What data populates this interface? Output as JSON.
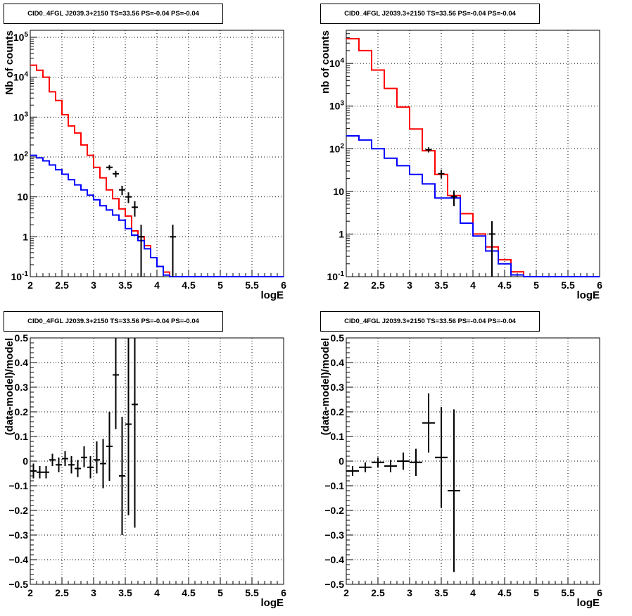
{
  "chart_data": [
    {
      "type": "histogram",
      "title": "CID0_4FGL J2039.3+2150 TS=33.56 PS=-0.04 PS=-0.04",
      "xlabel": "logE",
      "ylabel": "Nb of counts",
      "xlim": [
        2,
        6
      ],
      "ylim": [
        0.1,
        150000
      ],
      "yscale": "log",
      "grid": true,
      "x_ticks": [
        "2",
        "2.5",
        "3",
        "3.5",
        "4",
        "4.5",
        "5",
        "5.5",
        "6"
      ],
      "y_ticks": [
        "10^{-1}",
        "1",
        "10",
        "10^{2}",
        "10^{3}",
        "10^{4}",
        "10^{5}"
      ],
      "bin_edges": [
        2.0,
        2.1,
        2.2,
        2.3,
        2.4,
        2.5,
        2.6,
        2.7,
        2.8,
        2.9,
        3.0,
        3.1,
        3.2,
        3.3,
        3.4,
        3.5,
        3.6,
        3.7,
        3.8,
        3.9,
        4.0,
        4.1,
        4.2,
        4.3,
        4.4,
        4.5,
        4.6,
        4.7,
        4.8,
        4.9,
        5.0,
        5.1,
        5.2,
        5.3,
        5.4,
        5.5,
        5.6,
        5.7,
        5.8,
        5.9,
        6.0
      ],
      "series": [
        {
          "color": "#ff0000",
          "values": [
            20000,
            15000,
            10000,
            4300,
            2600,
            1150,
            600,
            400,
            200,
            110,
            55,
            30,
            15,
            9,
            5,
            3.3,
            1.4,
            1,
            0.6,
            0.3,
            0.18,
            0.13,
            0.1,
            0.1,
            0.1,
            0.1,
            0.1,
            0.1,
            0.1,
            0.1,
            0.1,
            0.1,
            0.1,
            0.1,
            0.1,
            0.1,
            0.1,
            0.1,
            0.1,
            0.1
          ]
        },
        {
          "color": "#0000ff",
          "values": [
            110,
            95,
            80,
            63,
            48,
            37,
            27,
            20,
            15,
            11,
            8.5,
            6,
            4.7,
            3.5,
            2.6,
            1.6,
            1.1,
            0.8,
            0.5,
            0.3,
            0.18,
            0.11,
            0.1,
            0.1,
            0.1,
            0.1,
            0.1,
            0.1,
            0.1,
            0.1,
            0.1,
            0.1,
            0.1,
            0.1,
            0.1,
            0.1,
            0.1,
            0.1,
            0.1,
            0.1
          ]
        }
      ],
      "points": [
        {
          "x": 3.25,
          "y": 55,
          "ylo": 47,
          "yhi": 63
        },
        {
          "x": 3.35,
          "y": 38,
          "ylo": 31,
          "yhi": 45
        },
        {
          "x": 3.45,
          "y": 15,
          "ylo": 11,
          "yhi": 19
        },
        {
          "x": 3.55,
          "y": 10,
          "ylo": 7,
          "yhi": 13
        },
        {
          "x": 3.65,
          "y": 5.5,
          "ylo": 3.2,
          "yhi": 7.8
        },
        {
          "x": 3.75,
          "y": 1,
          "ylo": 0.1,
          "yhi": 2
        },
        {
          "x": 4.25,
          "y": 1,
          "ylo": 0.1,
          "yhi": 2
        }
      ]
    },
    {
      "type": "histogram",
      "title": "CID0_4FGL J2039.3+2150 TS=33.56 PS=-0.04 PS=-0.04",
      "xlabel": "logE",
      "ylabel": "nb of counts",
      "xlim": [
        2,
        6
      ],
      "ylim": [
        0.1,
        60000
      ],
      "yscale": "log",
      "grid": true,
      "x_ticks": [
        "2",
        "2.5",
        "3",
        "3.5",
        "4",
        "4.5",
        "5",
        "5.5",
        "6"
      ],
      "y_ticks": [
        "10^{-1}",
        "1",
        "10",
        "10^{2}",
        "10^{3}",
        "10^{4}"
      ],
      "bin_edges": [
        2.0,
        2.2,
        2.4,
        2.6,
        2.8,
        3.0,
        3.2,
        3.4,
        3.6,
        3.8,
        4.0,
        4.2,
        4.4,
        4.6,
        4.8,
        5.0,
        5.2,
        5.4,
        5.6,
        5.8,
        6.0
      ],
      "series": [
        {
          "color": "#ff0000",
          "values": [
            38000,
            20000,
            7000,
            2600,
            950,
            290,
            90,
            25,
            8,
            3,
            1,
            0.5,
            0.25,
            0.13,
            0.1,
            0.1,
            0.1,
            0.1,
            0.1,
            0.1
          ]
        },
        {
          "color": "#0000ff",
          "values": [
            200,
            160,
            100,
            60,
            40,
            25,
            15,
            7,
            7,
            1.8,
            0.9,
            0.4,
            0.2,
            0.11,
            0.1,
            0.1,
            0.1,
            0.1,
            0.1,
            0.1
          ]
        }
      ],
      "points": [
        {
          "x": 3.3,
          "y": 95,
          "ylo": 82,
          "yhi": 108
        },
        {
          "x": 3.5,
          "y": 26,
          "ylo": 20,
          "yhi": 32
        },
        {
          "x": 3.7,
          "y": 7.5,
          "ylo": 4.5,
          "yhi": 10.5
        },
        {
          "x": 4.3,
          "y": 1,
          "ylo": 0.1,
          "yhi": 2
        }
      ]
    },
    {
      "type": "scatter",
      "title": "CID0_4FGL J2039.3+2150 TS=33.56 PS=-0.04 PS=-0.04",
      "xlabel": "logE",
      "ylabel": "(data-model)/model",
      "xlim": [
        2,
        6
      ],
      "ylim": [
        -0.5,
        0.5
      ],
      "grid": true,
      "x_ticks": [
        "2",
        "2.5",
        "3",
        "3.5",
        "4",
        "4.5",
        "5",
        "5.5",
        "6"
      ],
      "y_ticks": [
        "−0.5",
        "−0.4",
        "−0.3",
        "−0.2",
        "−0.1",
        "0",
        "0.1",
        "0.2",
        "0.3",
        "0.4",
        "0.5"
      ],
      "xerr": 0.05,
      "points": [
        {
          "x": 2.05,
          "y": -0.04,
          "ylo": -0.07,
          "yhi": -0.01
        },
        {
          "x": 2.15,
          "y": -0.045,
          "ylo": -0.07,
          "yhi": -0.02
        },
        {
          "x": 2.25,
          "y": -0.045,
          "ylo": -0.07,
          "yhi": -0.02
        },
        {
          "x": 2.35,
          "y": 0.005,
          "ylo": -0.02,
          "yhi": 0.03
        },
        {
          "x": 2.45,
          "y": -0.015,
          "ylo": -0.045,
          "yhi": 0.015
        },
        {
          "x": 2.55,
          "y": 0.01,
          "ylo": -0.02,
          "yhi": 0.04
        },
        {
          "x": 2.65,
          "y": -0.015,
          "ylo": -0.05,
          "yhi": 0.02
        },
        {
          "x": 2.75,
          "y": -0.03,
          "ylo": -0.065,
          "yhi": 0.005
        },
        {
          "x": 2.85,
          "y": 0.015,
          "ylo": -0.025,
          "yhi": 0.06
        },
        {
          "x": 2.95,
          "y": -0.025,
          "ylo": -0.07,
          "yhi": 0.02
        },
        {
          "x": 3.05,
          "y": 0.005,
          "ylo": -0.05,
          "yhi": 0.08
        },
        {
          "x": 3.15,
          "y": -0.01,
          "ylo": -0.11,
          "yhi": 0.09
        },
        {
          "x": 3.25,
          "y": 0.06,
          "ylo": -0.08,
          "yhi": 0.2
        },
        {
          "x": 3.35,
          "y": 0.35,
          "ylo": 0.13,
          "yhi": 0.5
        },
        {
          "x": 3.45,
          "y": -0.06,
          "ylo": -0.3,
          "yhi": 0.18
        },
        {
          "x": 3.55,
          "y": 0.15,
          "ylo": -0.22,
          "yhi": 0.5
        },
        {
          "x": 3.65,
          "y": 0.23,
          "ylo": -0.27,
          "yhi": 0.5
        }
      ]
    },
    {
      "type": "scatter",
      "title": "CID0_4FGL J2039.3+2150 TS=33.56 PS=-0.04 PS=-0.04",
      "xlabel": "logE",
      "ylabel": "(data-model)/model",
      "xlim": [
        2,
        6
      ],
      "ylim": [
        -0.5,
        0.5
      ],
      "grid": true,
      "x_ticks": [
        "2",
        "2.5",
        "3",
        "3.5",
        "4",
        "4.5",
        "5",
        "5.5",
        "6"
      ],
      "y_ticks": [
        "−0.5",
        "−0.4",
        "−0.3",
        "−0.2",
        "−0.1",
        "0",
        "0.1",
        "0.2",
        "0.3",
        "0.4",
        "0.5"
      ],
      "xerr": 0.1,
      "points": [
        {
          "x": 2.1,
          "y": -0.04,
          "ylo": -0.06,
          "yhi": -0.02
        },
        {
          "x": 2.3,
          "y": -0.025,
          "ylo": -0.045,
          "yhi": -0.005
        },
        {
          "x": 2.5,
          "y": -0.005,
          "ylo": -0.025,
          "yhi": 0.015
        },
        {
          "x": 2.7,
          "y": -0.02,
          "ylo": -0.045,
          "yhi": 0.005
        },
        {
          "x": 2.9,
          "y": 0.0,
          "ylo": -0.035,
          "yhi": 0.035
        },
        {
          "x": 3.1,
          "y": -0.005,
          "ylo": -0.06,
          "yhi": 0.05
        },
        {
          "x": 3.3,
          "y": 0.155,
          "ylo": 0.035,
          "yhi": 0.275
        },
        {
          "x": 3.5,
          "y": 0.015,
          "ylo": -0.19,
          "yhi": 0.22
        },
        {
          "x": 3.7,
          "y": -0.12,
          "ylo": -0.45,
          "yhi": 0.21
        }
      ]
    }
  ]
}
